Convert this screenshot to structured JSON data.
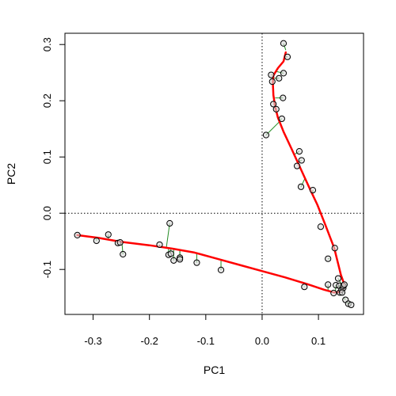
{
  "chart_data": {
    "type": "scatter",
    "title": "",
    "xlabel": "PC1",
    "ylabel": "PC2",
    "xlim": [
      -0.35,
      0.18
    ],
    "ylim": [
      -0.18,
      0.32
    ],
    "xticks": [
      -0.3,
      -0.2,
      -0.1,
      0.0,
      0.1
    ],
    "yticks": [
      -0.1,
      0.0,
      0.1,
      0.2,
      0.3
    ],
    "xtick_labels": [
      "-0.3",
      "-0.2",
      "-0.1",
      "0.0",
      "0.1"
    ],
    "ytick_labels": [
      "-0.1",
      "0.0",
      "0.1",
      "0.2",
      "0.3"
    ],
    "reference_lines": {
      "x": 0.0,
      "y": 0.0,
      "style": "dotted"
    },
    "grid": false,
    "legend": "none",
    "colors": {
      "points": "#000000",
      "point_fill": "#d9d9d9",
      "curve": "#ff0000",
      "projections": "#228b22",
      "reference": "#000000"
    },
    "points": [
      {
        "x": -0.328,
        "y": -0.039,
        "px": -0.328,
        "py": -0.039
      },
      {
        "x": -0.294,
        "y": -0.049,
        "px": -0.294,
        "py": -0.044
      },
      {
        "x": -0.273,
        "y": -0.038,
        "px": -0.273,
        "py": -0.047
      },
      {
        "x": -0.256,
        "y": -0.053,
        "px": -0.256,
        "py": -0.05
      },
      {
        "x": -0.252,
        "y": -0.052,
        "px": -0.252,
        "py": -0.05
      },
      {
        "x": -0.247,
        "y": -0.073,
        "px": -0.249,
        "py": -0.051
      },
      {
        "x": -0.182,
        "y": -0.056,
        "px": -0.182,
        "py": -0.059
      },
      {
        "x": -0.164,
        "y": -0.018,
        "px": -0.17,
        "py": -0.061
      },
      {
        "x": -0.166,
        "y": -0.074,
        "px": -0.166,
        "py": -0.062
      },
      {
        "x": -0.162,
        "y": -0.072,
        "px": -0.162,
        "py": -0.063
      },
      {
        "x": -0.157,
        "y": -0.084,
        "px": -0.157,
        "py": -0.063
      },
      {
        "x": -0.146,
        "y": -0.079,
        "px": -0.146,
        "py": -0.065
      },
      {
        "x": -0.146,
        "y": -0.082,
        "px": -0.146,
        "py": -0.065
      },
      {
        "x": -0.116,
        "y": -0.088,
        "px": -0.116,
        "py": -0.071
      },
      {
        "x": -0.073,
        "y": -0.101,
        "px": -0.073,
        "py": -0.083
      },
      {
        "x": 0.075,
        "y": -0.131,
        "px": 0.075,
        "py": -0.13
      },
      {
        "x": 0.117,
        "y": -0.127,
        "px": 0.117,
        "py": -0.139
      },
      {
        "x": 0.127,
        "y": -0.142,
        "px": 0.127,
        "py": -0.141
      },
      {
        "x": 0.131,
        "y": -0.128,
        "px": 0.13,
        "py": -0.141
      },
      {
        "x": 0.137,
        "y": -0.129,
        "px": 0.136,
        "py": -0.14
      },
      {
        "x": 0.138,
        "y": -0.141,
        "px": 0.138,
        "py": -0.14
      },
      {
        "x": 0.141,
        "y": -0.136,
        "px": 0.14,
        "py": -0.139
      },
      {
        "x": 0.144,
        "y": -0.133,
        "px": 0.143,
        "py": -0.134
      },
      {
        "x": 0.144,
        "y": -0.129,
        "px": 0.144,
        "py": -0.13
      },
      {
        "x": 0.146,
        "y": -0.127,
        "px": 0.145,
        "py": -0.127
      },
      {
        "x": 0.135,
        "y": -0.116,
        "px": 0.14,
        "py": -0.125
      },
      {
        "x": 0.142,
        "y": -0.141,
        "px": 0.142,
        "py": -0.141
      },
      {
        "x": 0.148,
        "y": -0.154,
        "px": 0.145,
        "py": -0.15
      },
      {
        "x": 0.153,
        "y": -0.161,
        "px": 0.15,
        "py": -0.158
      },
      {
        "x": 0.158,
        "y": -0.163,
        "px": 0.155,
        "py": -0.16
      },
      {
        "x": 0.117,
        "y": -0.081,
        "px": 0.12,
        "py": -0.081
      },
      {
        "x": 0.129,
        "y": -0.062,
        "px": 0.127,
        "py": -0.063
      },
      {
        "x": 0.104,
        "y": -0.024,
        "px": 0.104,
        "py": -0.024
      },
      {
        "x": 0.09,
        "y": 0.041,
        "px": 0.09,
        "py": 0.037
      },
      {
        "x": 0.069,
        "y": 0.047,
        "px": 0.076,
        "py": 0.062
      },
      {
        "x": 0.062,
        "y": 0.084,
        "px": 0.062,
        "py": 0.084
      },
      {
        "x": 0.07,
        "y": 0.094,
        "px": 0.065,
        "py": 0.092
      },
      {
        "x": 0.066,
        "y": 0.11,
        "px": 0.058,
        "py": 0.105
      },
      {
        "x": 0.007,
        "y": 0.139,
        "px": 0.03,
        "py": 0.162
      },
      {
        "x": 0.035,
        "y": 0.168,
        "px": 0.029,
        "py": 0.166
      },
      {
        "x": 0.025,
        "y": 0.185,
        "px": 0.025,
        "py": 0.185
      },
      {
        "x": 0.02,
        "y": 0.194,
        "px": 0.022,
        "py": 0.193
      },
      {
        "x": 0.037,
        "y": 0.205,
        "px": 0.023,
        "py": 0.205
      },
      {
        "x": 0.018,
        "y": 0.234,
        "px": 0.02,
        "py": 0.234
      },
      {
        "x": 0.016,
        "y": 0.246,
        "px": 0.018,
        "py": 0.246
      },
      {
        "x": 0.03,
        "y": 0.24,
        "px": 0.021,
        "py": 0.24
      },
      {
        "x": 0.038,
        "y": 0.249,
        "px": 0.025,
        "py": 0.252
      },
      {
        "x": 0.045,
        "y": 0.278,
        "px": 0.04,
        "py": 0.278
      },
      {
        "x": 0.038,
        "y": 0.302,
        "px": 0.042,
        "py": 0.29
      }
    ],
    "curve": [
      [
        -0.328,
        -0.039
      ],
      [
        -0.29,
        -0.044
      ],
      [
        -0.25,
        -0.051
      ],
      [
        -0.2,
        -0.057
      ],
      [
        -0.16,
        -0.063
      ],
      [
        -0.12,
        -0.07
      ],
      [
        -0.08,
        -0.081
      ],
      [
        -0.04,
        -0.092
      ],
      [
        0.0,
        -0.103
      ],
      [
        0.04,
        -0.114
      ],
      [
        0.08,
        -0.126
      ],
      [
        0.11,
        -0.136
      ],
      [
        0.128,
        -0.141
      ],
      [
        0.14,
        -0.14
      ],
      [
        0.146,
        -0.132
      ],
      [
        0.145,
        -0.124
      ],
      [
        0.14,
        -0.11
      ],
      [
        0.128,
        -0.062
      ],
      [
        0.112,
        -0.02
      ],
      [
        0.098,
        0.015
      ],
      [
        0.084,
        0.045
      ],
      [
        0.068,
        0.08
      ],
      [
        0.052,
        0.115
      ],
      [
        0.038,
        0.145
      ],
      [
        0.028,
        0.17
      ],
      [
        0.023,
        0.19
      ],
      [
        0.02,
        0.21
      ],
      [
        0.019,
        0.232
      ],
      [
        0.02,
        0.245
      ],
      [
        0.028,
        0.258
      ],
      [
        0.038,
        0.27
      ],
      [
        0.042,
        0.286
      ]
    ]
  }
}
